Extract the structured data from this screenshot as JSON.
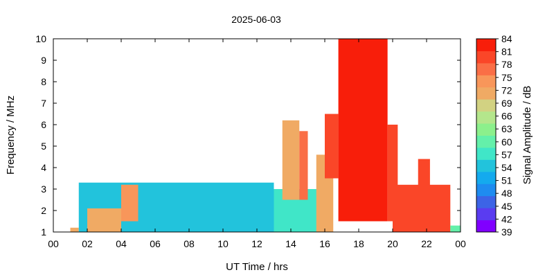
{
  "chart_data": {
    "type": "heatmap",
    "title": "2025-06-03",
    "xlabel": "UT Time / hrs",
    "ylabel": "Frequency / MHz",
    "colorbar_label": "Signal Amplitude / dB",
    "xlim": [
      0,
      24
    ],
    "ylim": [
      1,
      10
    ],
    "x_ticks": [
      "00",
      "02",
      "04",
      "06",
      "08",
      "10",
      "12",
      "14",
      "16",
      "18",
      "20",
      "22",
      "00"
    ],
    "y_ticks": [
      "1",
      "2",
      "3",
      "4",
      "5",
      "6",
      "7",
      "8",
      "9",
      "10"
    ],
    "colorbar": {
      "range": [
        39,
        84
      ],
      "ticks": [
        "39",
        "42",
        "45",
        "48",
        "51",
        "54",
        "57",
        "60",
        "63",
        "66",
        "69",
        "72",
        "75",
        "78",
        "81",
        "84"
      ],
      "colors": [
        "#8000ff",
        "#5a3cf0",
        "#3c64e6",
        "#1e8cf0",
        "#14aaee",
        "#22c3dc",
        "#40e6c8",
        "#64f0aa",
        "#8cf08c",
        "#b4e68c",
        "#d2d282",
        "#f0aa64",
        "#f8965a",
        "#fa6e46",
        "#fa4628",
        "#f81e0a"
      ]
    },
    "regions": [
      {
        "t_start": 1.0,
        "t_end": 1.5,
        "f_low": 1.0,
        "f_high": 1.2,
        "level_db": 72
      },
      {
        "t_start": 1.5,
        "t_end": 13.0,
        "f_low": 1.0,
        "f_high": 3.3,
        "level_db": 55
      },
      {
        "t_start": 2.0,
        "t_end": 4.0,
        "f_low": 1.0,
        "f_high": 2.1,
        "level_db": 72
      },
      {
        "t_start": 4.0,
        "t_end": 5.0,
        "f_low": 1.5,
        "f_high": 3.2,
        "level_db": 75
      },
      {
        "t_start": 13.0,
        "t_end": 16.0,
        "f_low": 1.0,
        "f_high": 3.0,
        "level_db": 57
      },
      {
        "t_start": 13.5,
        "t_end": 14.5,
        "f_low": 2.5,
        "f_high": 6.2,
        "level_db": 70
      },
      {
        "t_start": 14.5,
        "t_end": 15.0,
        "f_low": 2.5,
        "f_high": 5.7,
        "level_db": 76
      },
      {
        "t_start": 15.5,
        "t_end": 16.5,
        "f_low": 1.0,
        "f_high": 4.6,
        "level_db": 70
      },
      {
        "t_start": 16.0,
        "t_end": 16.8,
        "f_low": 3.5,
        "f_high": 6.5,
        "level_db": 80
      },
      {
        "t_start": 16.8,
        "t_end": 19.7,
        "f_low": 1.5,
        "f_high": 10.0,
        "level_db": 82
      },
      {
        "t_start": 19.7,
        "t_end": 20.3,
        "f_low": 1.5,
        "f_high": 6.0,
        "level_db": 80
      },
      {
        "t_start": 20.0,
        "t_end": 23.4,
        "f_low": 1.0,
        "f_high": 3.2,
        "level_db": 81
      },
      {
        "t_start": 21.5,
        "t_end": 22.2,
        "f_low": 2.5,
        "f_high": 4.4,
        "level_db": 80
      },
      {
        "t_start": 23.4,
        "t_end": 24.0,
        "f_low": 1.0,
        "f_high": 1.3,
        "level_db": 60
      }
    ]
  }
}
